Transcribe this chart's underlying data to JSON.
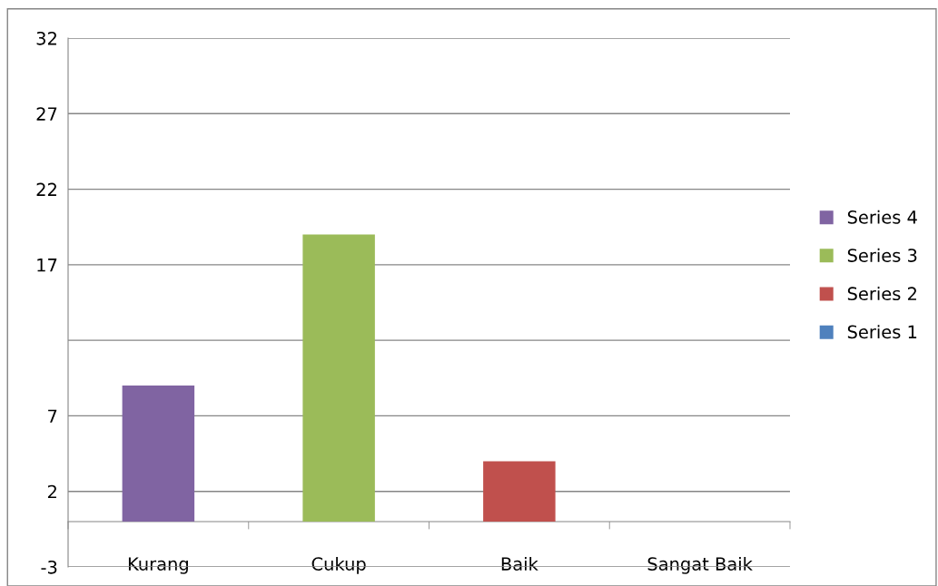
{
  "chart_data": {
    "type": "bar",
    "stacked": true,
    "categories": [
      "Kurang",
      "Cukup",
      "Baik",
      "Sangat Baik"
    ],
    "series": [
      {
        "name": "Series 1",
        "color": "#4f81bd",
        "values": [
          0,
          0,
          0,
          0
        ]
      },
      {
        "name": "Series 2",
        "color": "#c0504d",
        "values": [
          0,
          0,
          4,
          0
        ]
      },
      {
        "name": "Series 3",
        "color": "#9bbb59",
        "values": [
          0,
          19,
          0,
          0
        ]
      },
      {
        "name": "Series 4",
        "color": "#8064a2",
        "values": [
          9,
          0,
          0,
          0
        ]
      }
    ],
    "ylim": [
      -3,
      32
    ],
    "yticks": [
      -3,
      2,
      7,
      {
        "value": 12,
        "label": null
      },
      17,
      22,
      27,
      32
    ],
    "grid": "y",
    "legend": "right"
  }
}
